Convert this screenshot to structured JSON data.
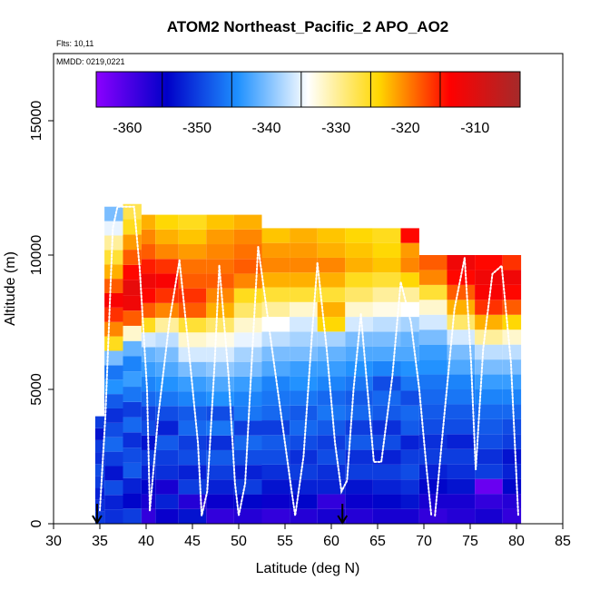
{
  "chart_data": {
    "type": "heatmap",
    "title": "ATOM2 Northeast_Pacific_2 APO_AO2",
    "annotations": [
      "Flts: 10,11",
      "MMDD: 0219,0221"
    ],
    "xlabel": "Latitude (deg N)",
    "ylabel": "Altitude (m)",
    "xlim": [
      30,
      85
    ],
    "ylim": [
      0,
      17500
    ],
    "xticks": [
      30,
      35,
      40,
      45,
      50,
      55,
      60,
      65,
      70,
      75,
      80,
      85
    ],
    "yticks": [
      0,
      5000,
      10000,
      15000
    ],
    "grid": false,
    "colorbar": {
      "range": [
        -364.5,
        -303.5
      ],
      "ticks": [
        -360,
        -350,
        -340,
        -330,
        -320,
        -310
      ],
      "colors": [
        "#8b00ff",
        "#0000c8",
        "#1e90ff",
        "#ffffff",
        "#ffd700",
        "#ff0000",
        "#a52a2a"
      ],
      "placement": "top"
    },
    "curtain_columns": [
      {
        "x0": 34.5,
        "x1": 35.5,
        "top": 4000,
        "values": [
          -350,
          -351,
          -352,
          -350,
          -349,
          -351,
          -350,
          -353,
          -350
        ]
      },
      {
        "x0": 35.5,
        "x1": 37.5,
        "top": 11800,
        "values": [
          -351,
          -352,
          -349,
          -353,
          -350,
          -347,
          -349,
          -351,
          -348,
          -344,
          -346,
          -340,
          -325,
          -320,
          -316,
          -313,
          -318,
          -322,
          -326,
          -330,
          -335,
          -340
        ]
      },
      {
        "x0": 37.5,
        "x1": 39.5,
        "top": 11900,
        "values": [
          -350,
          -354,
          -352,
          -348,
          -349,
          -351,
          -347,
          -350,
          -346,
          -343,
          -345,
          -341,
          -332,
          -318,
          -312,
          -311,
          -314,
          -318,
          -321,
          -325,
          -327
        ]
      },
      {
        "x0": 39.5,
        "x1": 41.0,
        "top": 11500,
        "values": [
          -358,
          -356,
          -354,
          -352,
          -350,
          -353,
          -349,
          -350,
          -347,
          -345,
          -343,
          -341,
          -336,
          -325,
          -318,
          -314,
          -312,
          -315,
          -318,
          -320,
          -322
        ]
      },
      {
        "x0": 41.0,
        "x1": 43.5,
        "top": 11500,
        "values": [
          -355,
          -352,
          -356,
          -351,
          -350,
          -348,
          -352,
          -349,
          -346,
          -344,
          -342,
          -340,
          -337,
          -330,
          -320,
          -316,
          -313,
          -316,
          -320,
          -322,
          -324
        ]
      },
      {
        "x0": 43.5,
        "x1": 46.5,
        "top": 11500,
        "values": [
          -353,
          -357,
          -350,
          -352,
          -349,
          -350,
          -347,
          -348,
          -345,
          -343,
          -340,
          -336,
          -332,
          -326,
          -318,
          -316,
          -318,
          -319,
          -321,
          -323,
          -325
        ]
      },
      {
        "x0": 46.5,
        "x1": 49.5,
        "top": 11500,
        "values": [
          -358,
          -355,
          -352,
          -350,
          -348,
          -351,
          -346,
          -349,
          -344,
          -342,
          -339,
          -336,
          -333,
          -328,
          -322,
          -320,
          -318,
          -319,
          -320,
          -321,
          -323
        ]
      },
      {
        "x0": 49.5,
        "x1": 52.5,
        "top": 11500,
        "values": [
          -357,
          -354,
          -350,
          -352,
          -349,
          -347,
          -350,
          -346,
          -345,
          -343,
          -340,
          -338,
          -335,
          -332,
          -328,
          -325,
          -320,
          -318,
          -319,
          -320,
          -322
        ]
      },
      {
        "x0": 52.5,
        "x1": 55.5,
        "top": 11000,
        "values": [
          -358,
          -355,
          -353,
          -351,
          -349,
          -348,
          -350,
          -347,
          -346,
          -345,
          -342,
          -340,
          -337,
          -334,
          -330,
          -326,
          -322,
          -320,
          -321,
          -323
        ]
      },
      {
        "x0": 55.5,
        "x1": 58.5,
        "top": 11000,
        "values": [
          -357,
          -354,
          -352,
          -350,
          -351,
          -349,
          -347,
          -348,
          -346,
          -344,
          -343,
          -340,
          -338,
          -336,
          -332,
          -326,
          -322,
          -320,
          -321,
          -322
        ]
      },
      {
        "x0": 58.5,
        "x1": 61.5,
        "top": 11000,
        "values": [
          -356,
          -358,
          -352,
          -351,
          -349,
          -350,
          -348,
          -346,
          -347,
          -345,
          -343,
          -341,
          -338,
          -324,
          -322,
          -326,
          -322,
          -320,
          -322,
          -323
        ]
      },
      {
        "x0": 61.5,
        "x1": 64.5,
        "top": 11000,
        "values": [
          -357,
          -355,
          -353,
          -350,
          -351,
          -348,
          -350,
          -347,
          -348,
          -346,
          -344,
          -342,
          -340,
          -336,
          -332,
          -328,
          -325,
          -322,
          -323,
          -324
        ]
      },
      {
        "x0": 64.5,
        "x1": 67.5,
        "top": 11000,
        "values": [
          -356,
          -354,
          -352,
          -350,
          -352,
          -349,
          -351,
          -348,
          -347,
          -349,
          -345,
          -342,
          -340,
          -337,
          -333,
          -330,
          -326,
          -323,
          -324,
          -325
        ]
      },
      {
        "x0": 67.5,
        "x1": 69.5,
        "top": 11000,
        "values": [
          -356,
          -353,
          -351,
          -349,
          -350,
          -352,
          -348,
          -347,
          -349,
          -346,
          -344,
          -342,
          -341,
          -338,
          -334,
          -330,
          -324,
          -320,
          -321,
          -314
        ]
      },
      {
        "x0": 69.5,
        "x1": 72.5,
        "top": 10000,
        "values": [
          -358,
          -356,
          -354,
          -352,
          -350,
          -351,
          -349,
          -348,
          -347,
          -346,
          -344,
          -343,
          -340,
          -336,
          -332,
          -326,
          -320,
          -318
        ]
      },
      {
        "x0": 72.5,
        "x1": 75.5,
        "top": 10000,
        "values": [
          -357,
          -356,
          -353,
          -351,
          -350,
          -352,
          -349,
          -348,
          -346,
          -345,
          -342,
          -340,
          -336,
          -328,
          -322,
          -318,
          -314,
          -312
        ]
      },
      {
        "x0": 75.5,
        "x1": 78.5,
        "top": 10000,
        "values": [
          -356,
          -358,
          -362,
          -350,
          -351,
          -349,
          -348,
          -347,
          -345,
          -343,
          -340,
          -337,
          -330,
          -322,
          -316,
          -313,
          -312,
          -314
        ]
      },
      {
        "x0": 78.5,
        "x1": 80.5,
        "top": 10000,
        "values": [
          -358,
          -357,
          -354,
          -352,
          -353,
          -350,
          -349,
          -347,
          -345,
          -343,
          -340,
          -337,
          -332,
          -324,
          -318,
          -314,
          -312,
          -316
        ]
      }
    ],
    "flight_tracks": [
      [
        [
          35.0,
          500
        ],
        [
          35.6,
          4000
        ],
        [
          36.0,
          7500
        ],
        [
          36.4,
          11000
        ],
        [
          36.9,
          11800
        ],
        [
          38.7,
          11800
        ],
        [
          39.3,
          9500
        ],
        [
          40.1,
          5000
        ],
        [
          40.4,
          500
        ]
      ],
      [
        [
          40.4,
          500
        ],
        [
          41.3,
          4000
        ],
        [
          42.5,
          7500
        ],
        [
          43.6,
          9800
        ]
      ],
      [
        [
          43.6,
          9800
        ],
        [
          44.6,
          6500
        ],
        [
          45.6,
          3000
        ],
        [
          46.0,
          300
        ],
        [
          46.6,
          1200
        ],
        [
          47.4,
          6000
        ],
        [
          47.9,
          9600
        ]
      ],
      [
        [
          47.9,
          9600
        ],
        [
          48.9,
          5500
        ],
        [
          49.6,
          1500
        ],
        [
          50.0,
          300
        ],
        [
          50.7,
          1500
        ],
        [
          51.4,
          6000
        ],
        [
          52.1,
          10300
        ]
      ],
      [
        [
          52.1,
          10300
        ],
        [
          53.4,
          7000
        ],
        [
          54.6,
          4000
        ],
        [
          55.6,
          1500
        ],
        [
          56.1,
          300
        ],
        [
          57.0,
          2500
        ],
        [
          57.9,
          7000
        ],
        [
          58.5,
          9700
        ]
      ],
      [
        [
          58.5,
          9700
        ],
        [
          59.5,
          6500
        ],
        [
          60.4,
          3000
        ],
        [
          61.1,
          1200
        ],
        [
          61.7,
          1600
        ],
        [
          62.4,
          5000
        ],
        [
          63.2,
          7800
        ]
      ],
      [
        [
          63.2,
          7800
        ],
        [
          63.9,
          5000
        ],
        [
          64.6,
          2300
        ],
        [
          65.4,
          2300
        ],
        [
          66.6,
          5500
        ],
        [
          67.5,
          9000
        ],
        [
          68.6,
          7500
        ],
        [
          69.5,
          5000
        ],
        [
          70.3,
          2000
        ],
        [
          70.8,
          300
        ]
      ],
      [
        [
          71.2,
          300
        ],
        [
          72.2,
          4000
        ],
        [
          73.3,
          8000
        ],
        [
          74.4,
          9900
        ],
        [
          75.1,
          6000
        ],
        [
          75.6,
          2000
        ],
        [
          76.4,
          6500
        ],
        [
          77.4,
          9300
        ],
        [
          78.4,
          9600
        ],
        [
          79.4,
          6000
        ],
        [
          80.2,
          300
        ]
      ]
    ],
    "arrows": [
      34.7,
      61.2
    ]
  }
}
